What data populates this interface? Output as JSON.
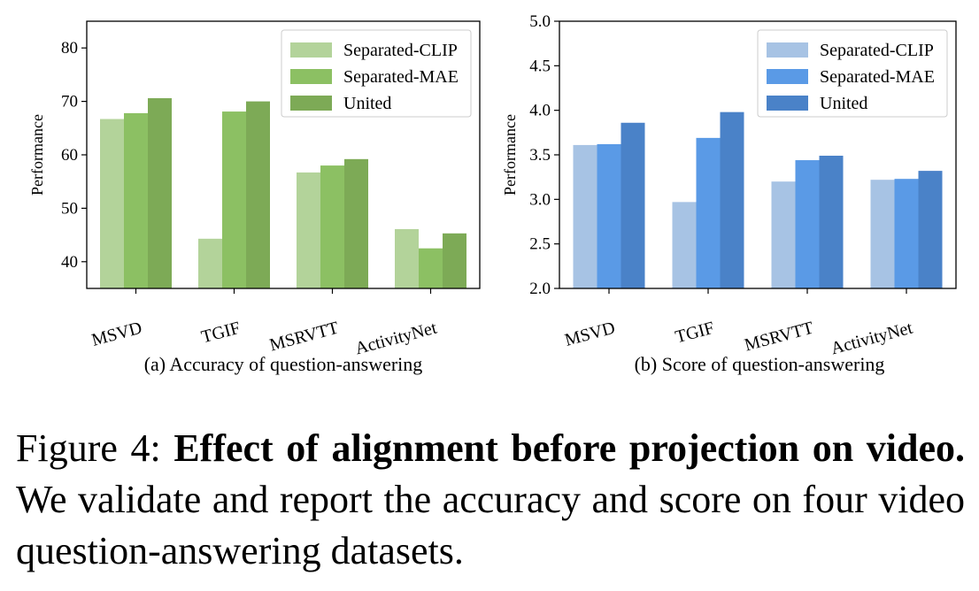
{
  "chart_data": [
    {
      "type": "bar",
      "title": "(a) Accuracy of question-answering",
      "xlabel": "",
      "ylabel": "Performance",
      "ylim": [
        35,
        85
      ],
      "yticks": [
        40,
        50,
        60,
        70,
        80
      ],
      "ytick_labels": [
        "40",
        "50",
        "60",
        "70",
        "80"
      ],
      "categories": [
        "MSVD",
        "TGIF",
        "MSRVTT",
        "ActivityNet"
      ],
      "legend_position": "top-right",
      "series": [
        {
          "name": "Separated-CLIP",
          "color": "#b3d39a",
          "values": [
            66.7,
            44.3,
            56.7,
            46.1
          ]
        },
        {
          "name": "Separated-MAE",
          "color": "#8cc063",
          "values": [
            67.8,
            68.1,
            58.0,
            42.5
          ]
        },
        {
          "name": "United",
          "color": "#7daa56",
          "values": [
            70.6,
            70.0,
            59.2,
            45.3
          ]
        }
      ]
    },
    {
      "type": "bar",
      "title": "(b) Score of question-answering",
      "xlabel": "",
      "ylabel": "Performance",
      "ylim": [
        2.0,
        5.0
      ],
      "yticks": [
        2.0,
        2.5,
        3.0,
        3.5,
        4.0,
        4.5,
        5.0
      ],
      "ytick_labels": [
        "2.0",
        "2.5",
        "3.0",
        "3.5",
        "4.0",
        "4.5",
        "5.0"
      ],
      "categories": [
        "MSVD",
        "TGIF",
        "MSRVTT",
        "ActivityNet"
      ],
      "legend_position": "top-right",
      "series": [
        {
          "name": "Separated-CLIP",
          "color": "#a7c3e4",
          "values": [
            3.61,
            2.97,
            3.2,
            3.22
          ]
        },
        {
          "name": "Separated-MAE",
          "color": "#5a9ae6",
          "values": [
            3.62,
            3.69,
            3.44,
            3.23
          ]
        },
        {
          "name": "United",
          "color": "#4a82c8",
          "values": [
            3.86,
            3.98,
            3.49,
            3.32
          ]
        }
      ]
    }
  ],
  "caption": {
    "label": "Figure 4:",
    "bold": "Effect of alignment before projection on video.",
    "text": "We validate and report the accuracy and score on four video question-answering datasets."
  }
}
